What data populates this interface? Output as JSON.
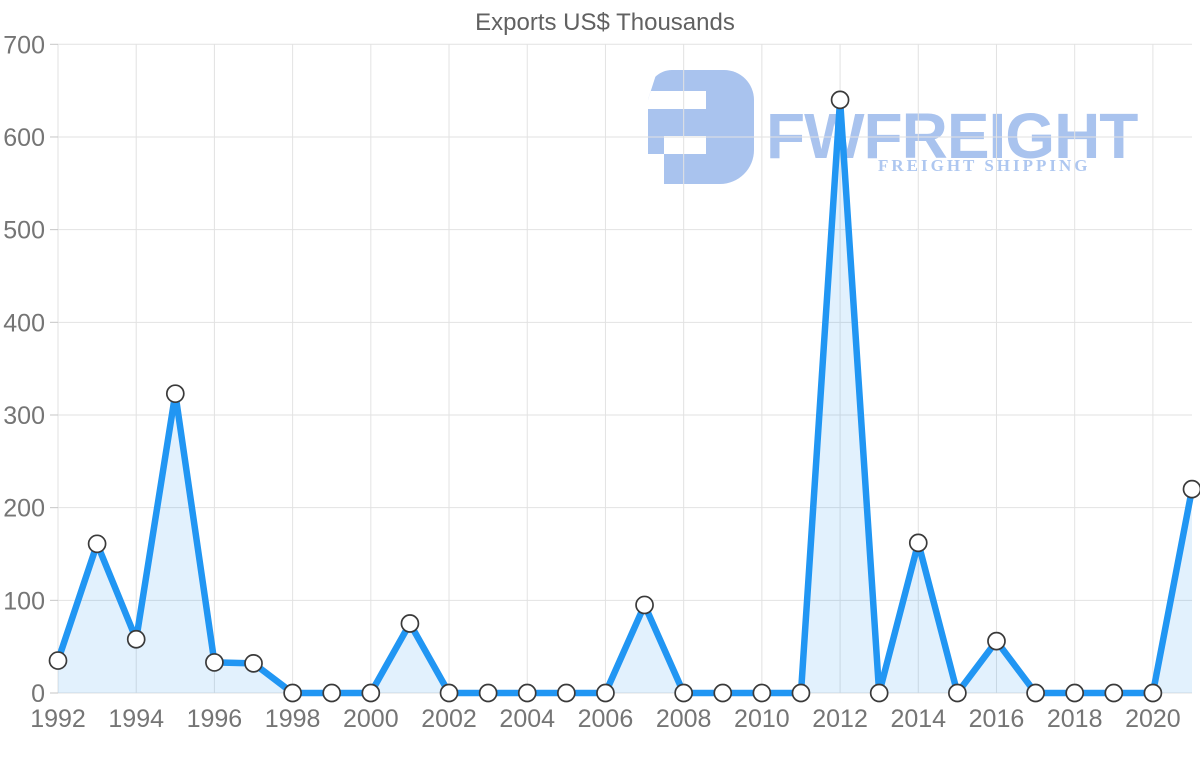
{
  "title": "Exports US$ Thousands",
  "watermark": {
    "brand": "FWFREIGHT",
    "subtitle": "FREIGHT SHIPPING",
    "color": "#a9c3ee"
  },
  "chart_data": {
    "type": "area",
    "title": "Exports US$ Thousands",
    "series_name": "Exports US$ Thousands",
    "x": [
      1992,
      1993,
      1994,
      1995,
      1996,
      1997,
      1998,
      1999,
      2000,
      2001,
      2002,
      2003,
      2004,
      2005,
      2006,
      2007,
      2008,
      2009,
      2010,
      2011,
      2012,
      2013,
      2014,
      2015,
      2016,
      2017,
      2018,
      2019,
      2020,
      2021
    ],
    "values": [
      35,
      161,
      58,
      323,
      33,
      32,
      0,
      0,
      0,
      75,
      0,
      0,
      0,
      0,
      0,
      95,
      0,
      0,
      0,
      0,
      640,
      0,
      162,
      0,
      56,
      0,
      0,
      0,
      0,
      220
    ],
    "xlabel": "",
    "ylabel": "",
    "ylim": [
      0,
      700
    ],
    "yticks": [
      0,
      100,
      200,
      300,
      400,
      500,
      600,
      700
    ],
    "xticks": [
      1992,
      1994,
      1996,
      1998,
      2000,
      2002,
      2004,
      2006,
      2008,
      2010,
      2012,
      2014,
      2016,
      2018,
      2020
    ],
    "grid": true,
    "legend": "none",
    "colors": {
      "line": "#2196f3",
      "area_fill": "rgba(33,150,243,0.13)",
      "marker_fill": "#ffffff",
      "marker_stroke": "#3a3a3a",
      "grid": "#e2e2e2",
      "tick": "#c6c6c6",
      "axis_label": "#757575",
      "title": "#616161"
    }
  }
}
